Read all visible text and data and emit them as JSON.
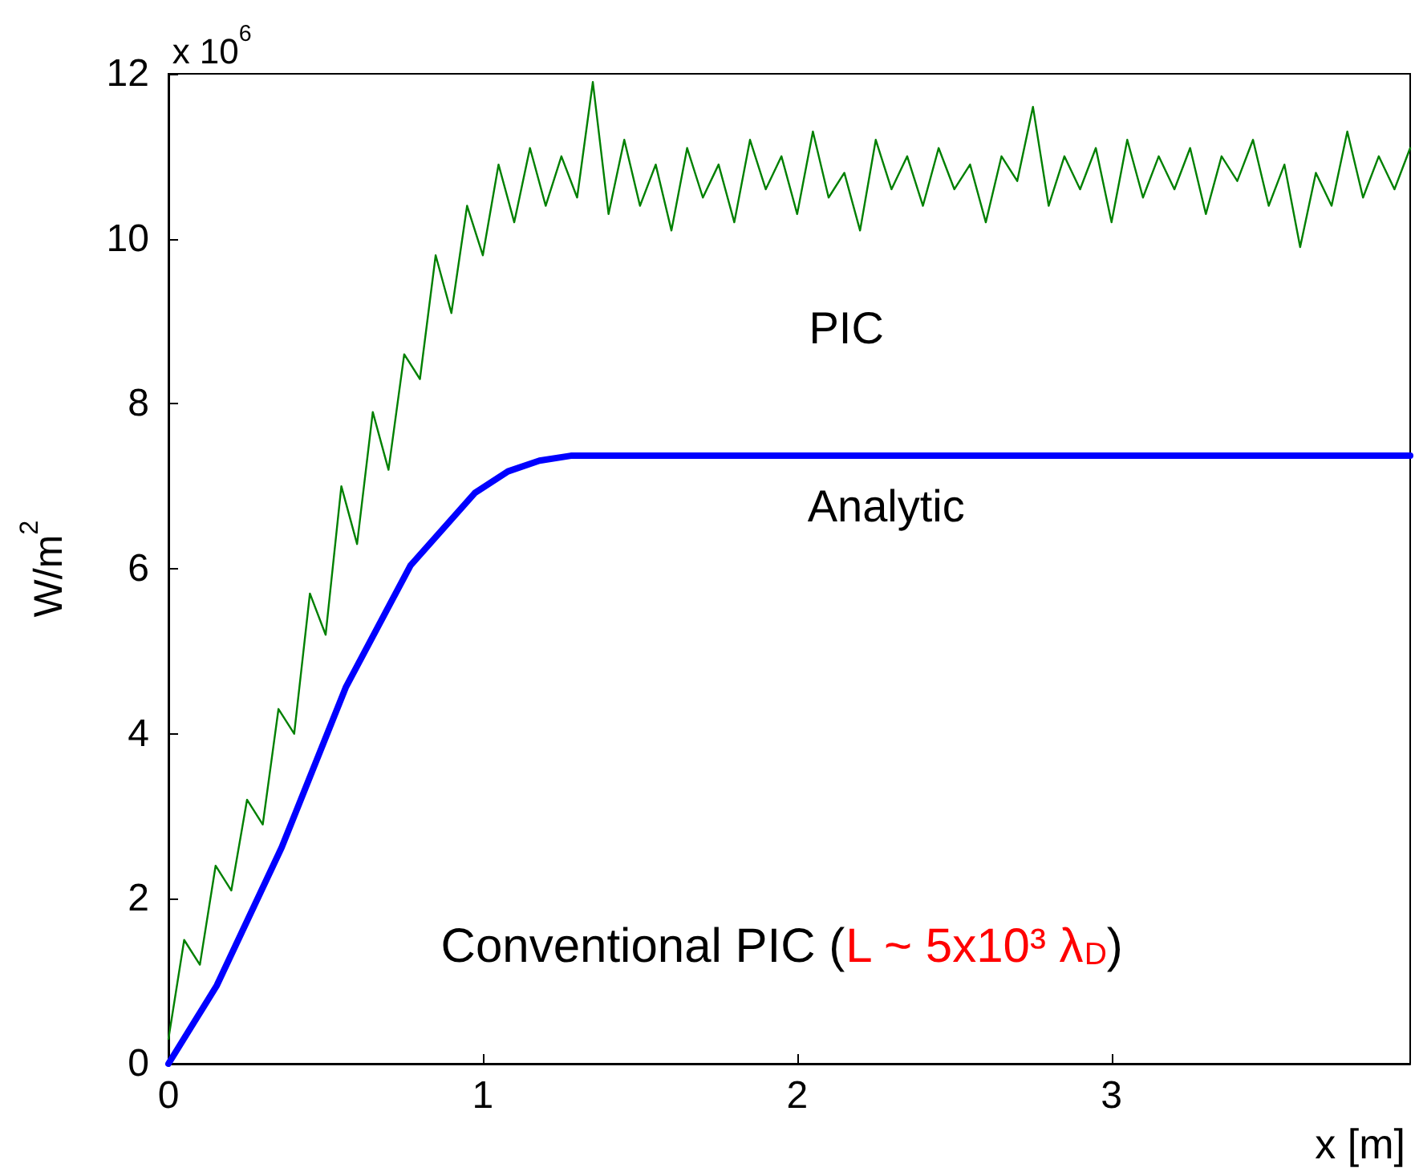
{
  "chart_data": {
    "type": "line",
    "xlabel": "x [m]",
    "ylabel": "W/m$^{2}$",
    "xlim": [
      0,
      3.95
    ],
    "xticks": [
      0,
      1,
      2,
      3
    ],
    "ylim": [
      0,
      12
    ],
    "yticks": [
      0,
      2,
      4,
      6,
      8,
      10,
      12
    ],
    "grid": false,
    "marker": "none",
    "line_style": "solid",
    "annotations": [
      "x 10$^{6}$",
      "PIC",
      "Analytic",
      "Conventional PIC (L ~ 5x10³ λ$_{D}$)"
    ],
    "series": [
      {
        "color": "#008000",
        "x": [
          0,
          0.05,
          0.1,
          0.15,
          0.2,
          0.25,
          0.3,
          0.35,
          0.4,
          0.45,
          0.5,
          0.55,
          0.6,
          0.65,
          0.7,
          0.75,
          0.8,
          0.85,
          0.9,
          0.95,
          1,
          1.05,
          1.1,
          1.15,
          1.2,
          1.25,
          1.3,
          1.35,
          1.4,
          1.45,
          1.5,
          1.55,
          1.6,
          1.65,
          1.7,
          1.75,
          1.8,
          1.85,
          1.9,
          1.95,
          2,
          2.05,
          2.1,
          2.15,
          2.2,
          2.25,
          2.3,
          2.35,
          2.4,
          2.45,
          2.5,
          2.55,
          2.6,
          2.65,
          2.7,
          2.75,
          2.8,
          2.85,
          2.9,
          2.95,
          3,
          3.05,
          3.1,
          3.15,
          3.2,
          3.25,
          3.3,
          3.35,
          3.4,
          3.45,
          3.5,
          3.55,
          3.6,
          3.65,
          3.7,
          3.75,
          3.8,
          3.85,
          3.9,
          3.95
        ],
        "values": [
          0.3,
          1.5,
          1.2,
          2.4,
          2.1,
          3.2,
          2.9,
          4.3,
          4.0,
          5.7,
          5.2,
          7.0,
          6.3,
          7.9,
          7.2,
          8.6,
          8.3,
          9.8,
          9.1,
          10.4,
          9.8,
          10.9,
          10.2,
          11.1,
          10.4,
          11.0,
          10.5,
          11.9,
          10.3,
          11.2,
          10.4,
          10.9,
          10.1,
          11.1,
          10.5,
          10.9,
          10.2,
          11.2,
          10.6,
          11.0,
          10.3,
          11.3,
          10.5,
          10.8,
          10.1,
          11.2,
          10.6,
          11.0,
          10.4,
          11.1,
          10.6,
          10.9,
          10.2,
          11.0,
          10.7,
          11.6,
          10.4,
          11.0,
          10.6,
          11.1,
          10.2,
          11.2,
          10.5,
          11.0,
          10.6,
          11.1,
          10.3,
          11.0,
          10.7,
          11.2,
          10.4,
          10.9,
          9.9,
          10.8,
          10.4,
          11.3,
          10.5,
          11.0,
          10.6,
          11.1
        ]
      },
      {
        "color": "#0000ff",
        "x": [
          0,
          0.154,
          0.36,
          0.565,
          0.77,
          0.975,
          1.08,
          1.18,
          1.28,
          3.95
        ],
        "values": [
          0,
          0.95,
          2.62,
          4.57,
          6.04,
          6.92,
          7.18,
          7.31,
          7.37,
          7.37
        ]
      }
    ]
  }
}
